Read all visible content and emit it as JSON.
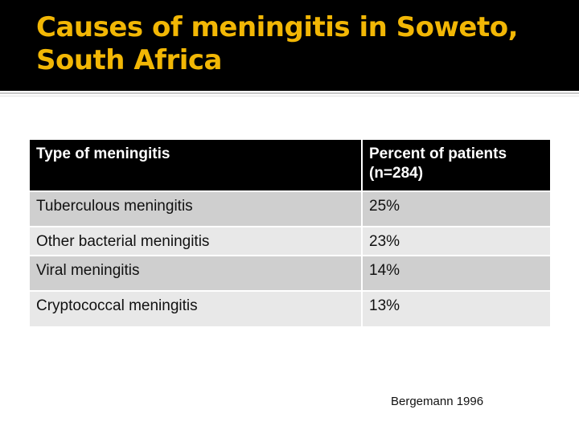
{
  "slide": {
    "title": "Causes of meningitis in Soweto, South Africa",
    "citation": "Bergemann 1996"
  },
  "table": {
    "headers": [
      "Type of meningitis",
      "Percent of patients (n=284)"
    ],
    "rows": [
      [
        "Tuberculous meningitis",
        "25%"
      ],
      [
        "Other bacterial meningitis",
        "23%"
      ],
      [
        "Viral meningitis",
        "14%"
      ],
      [
        "Cryptococcal meningitis",
        "13%"
      ]
    ]
  },
  "colors": {
    "title_text": "#f2b705",
    "title_band": "#000000",
    "header_bg": "#000000",
    "row_dark": "#cfcfcf",
    "row_light": "#e8e8e8"
  }
}
